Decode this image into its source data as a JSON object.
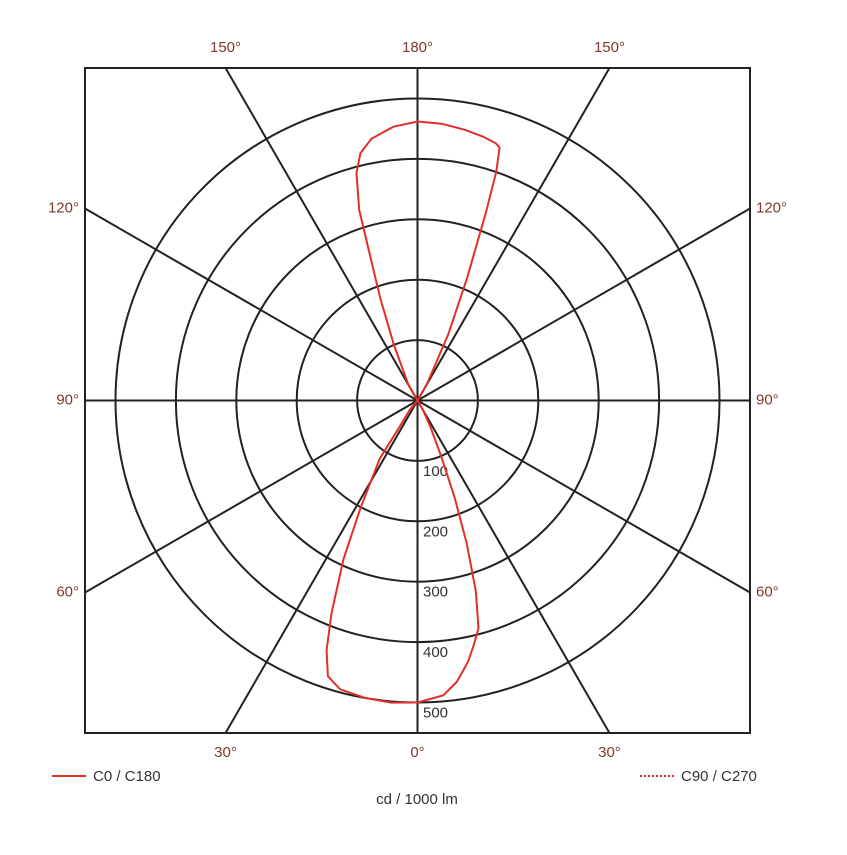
{
  "chart_data": {
    "type": "polar",
    "angles": [
      0,
      5,
      8,
      11,
      13,
      15,
      17,
      19,
      21,
      23,
      26,
      30,
      90,
      150,
      155,
      158,
      160,
      161,
      162,
      163,
      166,
      170,
      175,
      180,
      185,
      190,
      193,
      195,
      197,
      198,
      200,
      203,
      210,
      240,
      320,
      325,
      327,
      332,
      335,
      338,
      340,
      342,
      345,
      350,
      355
    ],
    "series": [
      {
        "name": "C0 / C180",
        "color": "#e0302a",
        "style": "solid",
        "values": [
          500,
          490,
          470,
          440,
          415,
          390,
          330,
          250,
          170,
          100,
          50,
          20,
          0,
          30,
          120,
          220,
          330,
          400,
          440,
          445,
          450,
          455,
          460,
          462,
          455,
          440,
          420,
          390,
          330,
          260,
          180,
          100,
          30,
          0,
          20,
          40,
          115,
          200,
          290,
          380,
          440,
          480,
          495,
          500,
          502
        ]
      },
      {
        "name": "C90 / C270",
        "color": "#e0302a",
        "style": "dotted",
        "values": []
      }
    ],
    "rlim": [
      0,
      500
    ],
    "rticks": [
      100,
      200,
      300,
      400,
      500
    ],
    "angle_ticks": [
      {
        "value": 0,
        "label": "0°"
      },
      {
        "value": 30,
        "label": "30°"
      },
      {
        "value": 60,
        "label": "60°"
      },
      {
        "value": 90,
        "label": "90°"
      },
      {
        "value": 120,
        "label": "120°"
      },
      {
        "value": 150,
        "label": "150°"
      },
      {
        "value": 180,
        "label": "180°"
      },
      {
        "value": 210,
        "label": "150°"
      },
      {
        "value": 240,
        "label": "120°"
      },
      {
        "value": 270,
        "label": "90°"
      },
      {
        "value": 300,
        "label": "60°"
      },
      {
        "value": 330,
        "label": "30°"
      }
    ],
    "radial_axis_label": "cd / 1000 lm"
  }
}
